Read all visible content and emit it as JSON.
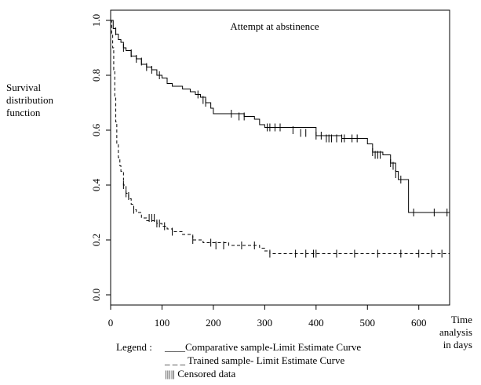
{
  "chart_data": {
    "type": "line",
    "title": "Attempt at abstinence",
    "ylabel": "Survival\ndistribution\nfunction",
    "xlabel": "Time\nanalysis\nin days",
    "xlim": [
      0,
      660
    ],
    "ylim": [
      0,
      1
    ],
    "xticks": [
      0,
      100,
      200,
      300,
      400,
      500,
      600
    ],
    "yticks": [
      0.0,
      0.2,
      0.4,
      0.6,
      0.8,
      1.0
    ],
    "ytick_labels": [
      "0.0",
      "0.2",
      "0.4",
      "0.6",
      "0.8",
      "1.0"
    ],
    "series": [
      {
        "name": "Comparative sample-Limit Estimate Curve",
        "style": "solid",
        "x": [
          0,
          5,
          10,
          15,
          20,
          25,
          30,
          40,
          50,
          60,
          70,
          80,
          90,
          100,
          110,
          120,
          140,
          155,
          165,
          175,
          185,
          195,
          200,
          220,
          240,
          260,
          280,
          290,
          300,
          400,
          450,
          500,
          510,
          530,
          545,
          555,
          560,
          570,
          580,
          660
        ],
        "y": [
          1.0,
          0.97,
          0.95,
          0.93,
          0.92,
          0.9,
          0.89,
          0.87,
          0.86,
          0.84,
          0.83,
          0.82,
          0.8,
          0.79,
          0.77,
          0.76,
          0.75,
          0.74,
          0.73,
          0.72,
          0.7,
          0.68,
          0.66,
          0.66,
          0.66,
          0.65,
          0.64,
          0.62,
          0.61,
          0.58,
          0.57,
          0.55,
          0.52,
          0.51,
          0.48,
          0.45,
          0.42,
          0.42,
          0.3,
          0.3
        ],
        "censored": [
          [
            10,
            0.96
          ],
          [
            25,
            0.9
          ],
          [
            40,
            0.88
          ],
          [
            50,
            0.86
          ],
          [
            60,
            0.85
          ],
          [
            70,
            0.83
          ],
          [
            80,
            0.82
          ],
          [
            95,
            0.8
          ],
          [
            170,
            0.73
          ],
          [
            180,
            0.71
          ],
          [
            185,
            0.7
          ],
          [
            235,
            0.66
          ],
          [
            250,
            0.65
          ],
          [
            260,
            0.65
          ],
          [
            305,
            0.61
          ],
          [
            310,
            0.61
          ],
          [
            320,
            0.61
          ],
          [
            330,
            0.61
          ],
          [
            355,
            0.6
          ],
          [
            370,
            0.59
          ],
          [
            380,
            0.59
          ],
          [
            400,
            0.58
          ],
          [
            410,
            0.58
          ],
          [
            420,
            0.57
          ],
          [
            425,
            0.57
          ],
          [
            430,
            0.57
          ],
          [
            440,
            0.57
          ],
          [
            450,
            0.57
          ],
          [
            455,
            0.57
          ],
          [
            470,
            0.57
          ],
          [
            480,
            0.57
          ],
          [
            510,
            0.52
          ],
          [
            515,
            0.51
          ],
          [
            520,
            0.51
          ],
          [
            525,
            0.51
          ],
          [
            545,
            0.48
          ],
          [
            550,
            0.47
          ],
          [
            555,
            0.44
          ],
          [
            565,
            0.42
          ],
          [
            590,
            0.3
          ],
          [
            630,
            0.3
          ],
          [
            655,
            0.3
          ]
        ]
      },
      {
        "name": "Trained sample- Limit Estimate Curve",
        "style": "dashed",
        "x": [
          0,
          2,
          4,
          6,
          8,
          10,
          12,
          15,
          18,
          20,
          25,
          30,
          35,
          40,
          45,
          50,
          60,
          70,
          80,
          90,
          100,
          110,
          120,
          140,
          160,
          180,
          200,
          230,
          260,
          290,
          300,
          310,
          660
        ],
        "y": [
          1.0,
          0.95,
          0.9,
          0.82,
          0.72,
          0.63,
          0.55,
          0.5,
          0.47,
          0.45,
          0.4,
          0.37,
          0.35,
          0.33,
          0.31,
          0.3,
          0.28,
          0.27,
          0.27,
          0.26,
          0.25,
          0.24,
          0.23,
          0.22,
          0.2,
          0.19,
          0.19,
          0.18,
          0.18,
          0.17,
          0.16,
          0.15,
          0.15
        ],
        "censored": [
          [
            25,
            0.4
          ],
          [
            30,
            0.37
          ],
          [
            35,
            0.36
          ],
          [
            45,
            0.31
          ],
          [
            75,
            0.28
          ],
          [
            80,
            0.28
          ],
          [
            85,
            0.28
          ],
          [
            90,
            0.26
          ],
          [
            95,
            0.26
          ],
          [
            105,
            0.25
          ],
          [
            120,
            0.23
          ],
          [
            160,
            0.2
          ],
          [
            195,
            0.19
          ],
          [
            205,
            0.18
          ],
          [
            220,
            0.18
          ],
          [
            255,
            0.18
          ],
          [
            280,
            0.18
          ],
          [
            310,
            0.15
          ],
          [
            360,
            0.15
          ],
          [
            380,
            0.15
          ],
          [
            395,
            0.15
          ],
          [
            400,
            0.15
          ],
          [
            440,
            0.15
          ],
          [
            475,
            0.15
          ],
          [
            520,
            0.15
          ],
          [
            565,
            0.15
          ],
          [
            600,
            0.15
          ],
          [
            625,
            0.15
          ],
          [
            645,
            0.15
          ],
          [
            660,
            0.15
          ]
        ]
      }
    ],
    "legend": {
      "label": "Legend :",
      "entries": [
        {
          "marker": "____",
          "text": "Comparative sample-Limit Estimate Curve"
        },
        {
          "marker": "_ _ _",
          "text": "Trained sample- Limit Estimate Curve"
        },
        {
          "marker": "|||||",
          "text": "Censored data"
        }
      ]
    }
  }
}
